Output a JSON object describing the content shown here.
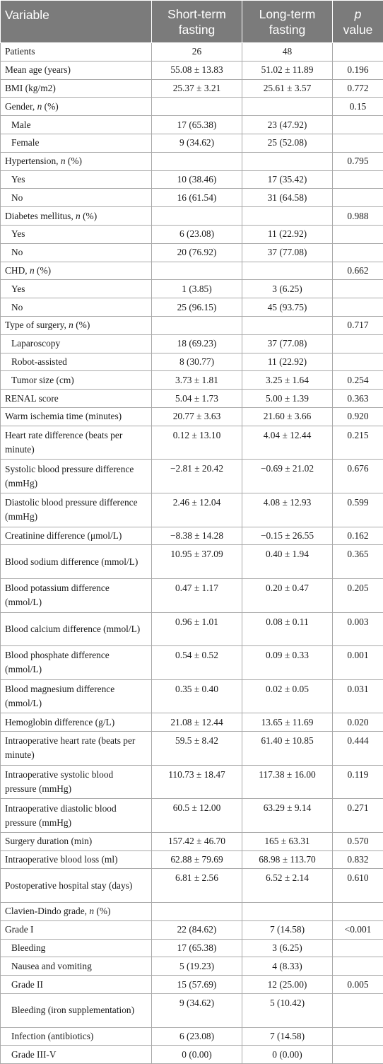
{
  "header": {
    "variable": "Variable",
    "short_term": "Short-term fasting",
    "long_term": "Long-term fasting",
    "p_italic": "p",
    "p_value": "value"
  },
  "rows": [
    {
      "label": "Patients",
      "short": "26",
      "long": "48",
      "p": ""
    },
    {
      "label": "Mean age (years)",
      "short": "55.08 ± 13.83",
      "long": "51.02 ± 11.89",
      "p": "0.196"
    },
    {
      "label": "BMI (kg/m2)",
      "short": "25.37 ± 3.21",
      "long": "25.61 ± 3.57",
      "p": "0.772"
    },
    {
      "label": "Gender, ",
      "label_italic": "n",
      "label_suffix": " (%)",
      "short": "",
      "long": "",
      "p": "0.15"
    },
    {
      "label": "Male",
      "short": "17 (65.38)",
      "long": "23 (47.92)",
      "p": ""
    },
    {
      "label": "Female",
      "short": "9 (34.62)",
      "long": "25 (52.08)",
      "p": ""
    },
    {
      "label": "Hypertension, ",
      "label_italic": "n",
      "label_suffix": " (%)",
      "short": "",
      "long": "",
      "p": "0.795"
    },
    {
      "label": "Yes",
      "short": "10 (38.46)",
      "long": "17 (35.42)",
      "p": ""
    },
    {
      "label": "No",
      "short": "16 (61.54)",
      "long": "31 (64.58)",
      "p": ""
    },
    {
      "label": "Diabetes mellitus, ",
      "label_italic": "n",
      "label_suffix": " (%)",
      "short": "",
      "long": "",
      "p": "0.988"
    },
    {
      "label": "Yes",
      "short": "6 (23.08)",
      "long": "11 (22.92)",
      "p": ""
    },
    {
      "label": "No",
      "short": "20 (76.92)",
      "long": "37 (77.08)",
      "p": ""
    },
    {
      "label": "CHD, ",
      "label_italic": "n",
      "label_suffix": " (%)",
      "short": "",
      "long": "",
      "p": "0.662"
    },
    {
      "label": "Yes",
      "short": "1 (3.85)",
      "long": "3 (6.25)",
      "p": ""
    },
    {
      "label": "No",
      "short": "25 (96.15)",
      "long": "45 (93.75)",
      "p": ""
    },
    {
      "label": "Type of surgery, ",
      "label_italic": "n",
      "label_suffix": " (%)",
      "short": "",
      "long": "",
      "p": "0.717"
    },
    {
      "label": "Laparoscopy",
      "short": "18 (69.23)",
      "long": "37 (77.08)",
      "p": ""
    },
    {
      "label": "Robot-assisted",
      "short": "8 (30.77)",
      "long": "11 (22.92)",
      "p": ""
    },
    {
      "label": "Tumor size (cm)",
      "short": "3.73 ± 1.81",
      "long": "3.25 ± 1.64",
      "p": "0.254"
    },
    {
      "label": "RENAL score",
      "short": "5.04 ± 1.73",
      "long": "5.00 ± 1.39",
      "p": "0.363"
    },
    {
      "label": "Warm ischemia time (minutes)",
      "short": "20.77 ± 3.63",
      "long": "21.60 ± 3.66",
      "p": "0.920"
    },
    {
      "label": "Heart rate difference (beats per minute)",
      "short": "0.12 ± 13.10",
      "long": "4.04 ± 12.44",
      "p": "0.215"
    },
    {
      "label": "Systolic blood pressure difference (mmHg)",
      "short": "−2.81 ± 20.42",
      "long": "−0.69 ± 21.02",
      "p": "0.676"
    },
    {
      "label": "Diastolic blood pressure difference (mmHg)",
      "short": "2.46 ± 12.04",
      "long": "4.08 ± 12.93",
      "p": "0.599"
    },
    {
      "label": "Creatinine difference (μmol/L)",
      "short": "−8.38 ± 14.28",
      "long": "−0.15 ± 26.55",
      "p": "0.162"
    },
    {
      "label": "Blood sodium difference (mmol/L)",
      "short": "10.95 ± 37.09",
      "long": "0.40 ± 1.94",
      "p": "0.365"
    },
    {
      "label": "Blood potassium difference (mmol/L)",
      "short": "0.47 ± 1.17",
      "long": "0.20 ± 0.47",
      "p": "0.205"
    },
    {
      "label": "Blood calcium difference (mmol/L)",
      "short": "0.96 ± 1.01",
      "long": "0.08 ± 0.11",
      "p": "0.003"
    },
    {
      "label": "Blood phosphate difference (mmol/L)",
      "short": "0.54 ± 0.52",
      "long": "0.09 ± 0.33",
      "p": "0.001"
    },
    {
      "label": "Blood magnesium difference (mmol/L)",
      "short": "0.35 ± 0.40",
      "long": "0.02 ± 0.05",
      "p": "0.031"
    },
    {
      "label": "Hemoglobin difference (g/L)",
      "short": "21.08 ± 12.44",
      "long": "13.65 ± 11.69",
      "p": "0.020"
    },
    {
      "label": "Intraoperative heart rate (beats per minute)",
      "short": "59.5 ± 8.42",
      "long": "61.40 ± 10.85",
      "p": "0.444"
    },
    {
      "label": "Intraoperative systolic blood pressure (mmHg)",
      "short": "110.73 ± 18.47",
      "long": "117.38 ± 16.00",
      "p": "0.119"
    },
    {
      "label": "Intraoperative diastolic blood pressure (mmHg)",
      "short": "60.5 ± 12.00",
      "long": "63.29 ± 9.14",
      "p": "0.271"
    },
    {
      "label": "Surgery duration (min)",
      "short": "157.42 ± 46.70",
      "long": "165 ± 63.31",
      "p": "0.570"
    },
    {
      "label": "Intraoperative blood loss (ml)",
      "short": "62.88 ± 79.69",
      "long": "68.98 ± 113.70",
      "p": "0.832"
    },
    {
      "label": "Postoperative hospital stay (days)",
      "short": "6.81 ± 2.56",
      "long": "6.52 ± 2.14",
      "p": "0.610"
    },
    {
      "label": "Clavien-Dindo grade, ",
      "label_italic": "n",
      "label_suffix": " (%)",
      "short": "",
      "long": "",
      "p": ""
    },
    {
      "label": "Grade I",
      "short": "22 (84.62)",
      "long": "7 (14.58)",
      "p": "<0.001"
    },
    {
      "label": "Bleeding",
      "short": "17 (65.38)",
      "long": "3 (6.25)",
      "p": ""
    },
    {
      "label": "Nausea and vomiting",
      "short": "5 (19.23)",
      "long": "4 (8.33)",
      "p": ""
    },
    {
      "label": "Grade II",
      "short": "15 (57.69)",
      "long": "12 (25.00)",
      "p": "0.005"
    },
    {
      "label": "Bleeding (iron supplementation)",
      "short": "9 (34.62)",
      "long": "5 (10.42)",
      "p": ""
    },
    {
      "label": "Infection (antibiotics)",
      "short": "6 (23.08)",
      "long": "7 (14.58)",
      "p": ""
    },
    {
      "label": "Grade III-V",
      "short": "0 (0.00)",
      "long": "0 (0.00)",
      "p": ""
    }
  ]
}
